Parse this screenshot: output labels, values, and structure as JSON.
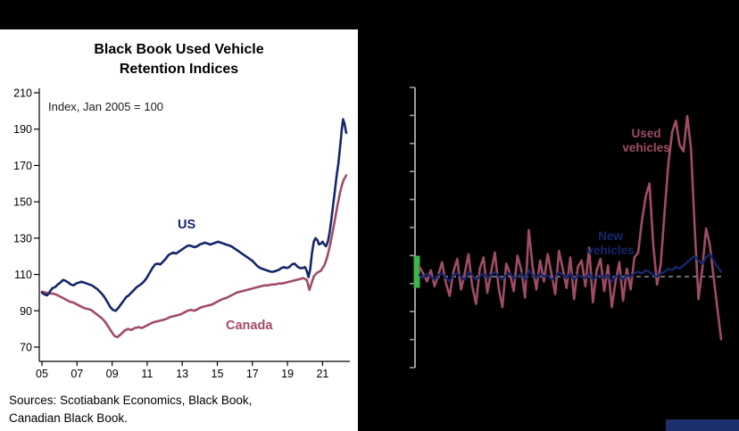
{
  "page": {
    "background_color": "#000000",
    "footer_bar_color": "#1c2e6b"
  },
  "chart_data": [
    {
      "type": "line",
      "title": "Black Book Used Vehicle Retention Indices",
      "annotation": "Index, Jan 2005 = 100",
      "xlabel": "",
      "ylabel": "",
      "ylim": [
        70,
        210
      ],
      "yticks": [
        70,
        90,
        110,
        130,
        150,
        170,
        190,
        210
      ],
      "xtick_labels": [
        "05",
        "07",
        "09",
        "11",
        "13",
        "15",
        "17",
        "19",
        "21"
      ],
      "xtick_years": [
        2005,
        2007,
        2009,
        2011,
        2013,
        2015,
        2017,
        2019,
        2021
      ],
      "grid": false,
      "legend_position": "inline-series-labels",
      "series": [
        {
          "name": "US",
          "color": "#16266c",
          "points": [
            [
              2005.0,
              100
            ],
            [
              2005.15,
              99
            ],
            [
              2005.3,
              98.5
            ],
            [
              2005.45,
              100.5
            ],
            [
              2005.6,
              102.5
            ],
            [
              2005.75,
              103
            ],
            [
              2005.9,
              104.5
            ],
            [
              2006.05,
              105.5
            ],
            [
              2006.2,
              107
            ],
            [
              2006.35,
              106.5
            ],
            [
              2006.5,
              105.5
            ],
            [
              2006.65,
              104.5
            ],
            [
              2006.8,
              104
            ],
            [
              2006.95,
              105
            ],
            [
              2007.1,
              105.5
            ],
            [
              2007.25,
              106
            ],
            [
              2007.4,
              105.5
            ],
            [
              2007.55,
              105
            ],
            [
              2007.7,
              104.5
            ],
            [
              2007.85,
              104
            ],
            [
              2008.0,
              103
            ],
            [
              2008.15,
              102
            ],
            [
              2008.3,
              100.5
            ],
            [
              2008.45,
              99
            ],
            [
              2008.6,
              97
            ],
            [
              2008.75,
              94.5
            ],
            [
              2008.9,
              92
            ],
            [
              2009.05,
              90.5
            ],
            [
              2009.2,
              90
            ],
            [
              2009.35,
              91.5
            ],
            [
              2009.5,
              93.5
            ],
            [
              2009.65,
              95.5
            ],
            [
              2009.8,
              97.5
            ],
            [
              2009.95,
              98.5
            ],
            [
              2010.1,
              100
            ],
            [
              2010.25,
              101.5
            ],
            [
              2010.4,
              103
            ],
            [
              2010.55,
              104
            ],
            [
              2010.7,
              105
            ],
            [
              2010.85,
              106.5
            ],
            [
              2011.0,
              108.5
            ],
            [
              2011.15,
              111
            ],
            [
              2011.3,
              113.5
            ],
            [
              2011.45,
              115.5
            ],
            [
              2011.6,
              116
            ],
            [
              2011.75,
              115.5
            ],
            [
              2011.9,
              117
            ],
            [
              2012.05,
              118.5
            ],
            [
              2012.2,
              120.5
            ],
            [
              2012.35,
              121.5
            ],
            [
              2012.5,
              122
            ],
            [
              2012.65,
              121.5
            ],
            [
              2012.8,
              122.5
            ],
            [
              2012.95,
              123.5
            ],
            [
              2013.1,
              124.5
            ],
            [
              2013.25,
              125.5
            ],
            [
              2013.4,
              126
            ],
            [
              2013.55,
              125.5
            ],
            [
              2013.7,
              125
            ],
            [
              2013.85,
              125.5
            ],
            [
              2014.0,
              126.5
            ],
            [
              2014.15,
              127
            ],
            [
              2014.3,
              127.5
            ],
            [
              2014.45,
              127
            ],
            [
              2014.6,
              126.5
            ],
            [
              2014.75,
              127
            ],
            [
              2014.9,
              127.5
            ],
            [
              2015.05,
              128
            ],
            [
              2015.2,
              127.5
            ],
            [
              2015.35,
              127
            ],
            [
              2015.5,
              126.5
            ],
            [
              2015.65,
              126
            ],
            [
              2015.8,
              125.5
            ],
            [
              2015.95,
              124.5
            ],
            [
              2016.1,
              123.5
            ],
            [
              2016.25,
              122.5
            ],
            [
              2016.4,
              121.5
            ],
            [
              2016.55,
              120.5
            ],
            [
              2016.7,
              119.5
            ],
            [
              2016.85,
              118.5
            ],
            [
              2017.0,
              117.5
            ],
            [
              2017.15,
              116
            ],
            [
              2017.3,
              114.5
            ],
            [
              2017.45,
              113.5
            ],
            [
              2017.6,
              113
            ],
            [
              2017.75,
              112.5
            ],
            [
              2017.9,
              112
            ],
            [
              2018.05,
              111.5
            ],
            [
              2018.2,
              111.5
            ],
            [
              2018.35,
              112
            ],
            [
              2018.5,
              112.5
            ],
            [
              2018.65,
              113.5
            ],
            [
              2018.8,
              114
            ],
            [
              2018.95,
              113.5
            ],
            [
              2019.1,
              114
            ],
            [
              2019.25,
              115.5
            ],
            [
              2019.4,
              116
            ],
            [
              2019.55,
              114.5
            ],
            [
              2019.7,
              113.5
            ],
            [
              2019.85,
              113.5
            ],
            [
              2020.0,
              114
            ],
            [
              2020.1,
              112
            ],
            [
              2020.2,
              108.5
            ],
            [
              2020.3,
              113
            ],
            [
              2020.4,
              122
            ],
            [
              2020.5,
              128
            ],
            [
              2020.6,
              130
            ],
            [
              2020.7,
              129
            ],
            [
              2020.8,
              126.5
            ],
            [
              2020.9,
              127
            ],
            [
              2021.0,
              128
            ],
            [
              2021.1,
              126.5
            ],
            [
              2021.2,
              125.5
            ],
            [
              2021.3,
              128
            ],
            [
              2021.4,
              133
            ],
            [
              2021.5,
              140
            ],
            [
              2021.6,
              148
            ],
            [
              2021.7,
              156
            ],
            [
              2021.8,
              164
            ],
            [
              2021.9,
              171
            ],
            [
              2022.0,
              180
            ],
            [
              2022.1,
              190
            ],
            [
              2022.17,
              195.5
            ],
            [
              2022.25,
              193
            ],
            [
              2022.35,
              188
            ]
          ]
        },
        {
          "name": "Canada",
          "color": "#a04c64",
          "points": [
            [
              2005.0,
              100.5
            ],
            [
              2005.2,
              100
            ],
            [
              2005.4,
              99.5
            ],
            [
              2005.6,
              99.5
            ],
            [
              2005.8,
              99
            ],
            [
              2006.0,
              98
            ],
            [
              2006.2,
              97
            ],
            [
              2006.4,
              96
            ],
            [
              2006.6,
              95
            ],
            [
              2006.8,
              94.5
            ],
            [
              2007.0,
              93.5
            ],
            [
              2007.2,
              92.5
            ],
            [
              2007.4,
              91.5
            ],
            [
              2007.6,
              91
            ],
            [
              2007.8,
              90.5
            ],
            [
              2008.0,
              89
            ],
            [
              2008.2,
              87.5
            ],
            [
              2008.4,
              86
            ],
            [
              2008.6,
              84
            ],
            [
              2008.8,
              81
            ],
            [
              2009.0,
              78
            ],
            [
              2009.15,
              76
            ],
            [
              2009.3,
              75.5
            ],
            [
              2009.5,
              77
            ],
            [
              2009.7,
              79
            ],
            [
              2009.9,
              80
            ],
            [
              2010.1,
              79.5
            ],
            [
              2010.3,
              80.5
            ],
            [
              2010.5,
              81
            ],
            [
              2010.7,
              80.5
            ],
            [
              2010.9,
              81.5
            ],
            [
              2011.1,
              82.5
            ],
            [
              2011.3,
              83.5
            ],
            [
              2011.5,
              84
            ],
            [
              2011.7,
              84.5
            ],
            [
              2011.9,
              85
            ],
            [
              2012.1,
              85.5
            ],
            [
              2012.3,
              86.5
            ],
            [
              2012.5,
              87
            ],
            [
              2012.7,
              87.5
            ],
            [
              2012.9,
              88
            ],
            [
              2013.1,
              89
            ],
            [
              2013.3,
              90
            ],
            [
              2013.5,
              90.5
            ],
            [
              2013.7,
              90
            ],
            [
              2013.9,
              91
            ],
            [
              2014.1,
              92
            ],
            [
              2014.3,
              92.5
            ],
            [
              2014.5,
              93
            ],
            [
              2014.7,
              93.5
            ],
            [
              2014.9,
              94.5
            ],
            [
              2015.1,
              95.5
            ],
            [
              2015.3,
              96.5
            ],
            [
              2015.5,
              97
            ],
            [
              2015.7,
              98
            ],
            [
              2015.9,
              99
            ],
            [
              2016.1,
              100
            ],
            [
              2016.3,
              100.5
            ],
            [
              2016.5,
              101
            ],
            [
              2016.7,
              101.5
            ],
            [
              2016.9,
              102
            ],
            [
              2017.1,
              102.5
            ],
            [
              2017.3,
              103
            ],
            [
              2017.5,
              103.5
            ],
            [
              2017.7,
              104
            ],
            [
              2017.9,
              104
            ],
            [
              2018.1,
              104.5
            ],
            [
              2018.3,
              104.5
            ],
            [
              2018.5,
              105
            ],
            [
              2018.7,
              105
            ],
            [
              2018.9,
              105.5
            ],
            [
              2019.1,
              106
            ],
            [
              2019.3,
              106.5
            ],
            [
              2019.5,
              107
            ],
            [
              2019.7,
              107.5
            ],
            [
              2019.9,
              108
            ],
            [
              2020.1,
              107
            ],
            [
              2020.25,
              101.5
            ],
            [
              2020.4,
              106
            ],
            [
              2020.5,
              109
            ],
            [
              2020.7,
              111
            ],
            [
              2020.9,
              112
            ],
            [
              2021.0,
              113.5
            ],
            [
              2021.1,
              115
            ],
            [
              2021.25,
              119
            ],
            [
              2021.4,
              125
            ],
            [
              2021.55,
              132
            ],
            [
              2021.7,
              140
            ],
            [
              2021.85,
              148
            ],
            [
              2022.0,
              155
            ],
            [
              2022.1,
              159
            ],
            [
              2022.2,
              162
            ],
            [
              2022.35,
              164.5
            ]
          ]
        }
      ],
      "source_lines": [
        "Sources: Scotiabank Economics, Black Book,",
        "Canadian Black Book."
      ]
    },
    {
      "type": "line",
      "title": "",
      "baseline": 0,
      "baseline_style": "dashed",
      "ylim": [
        -5.5,
        11
      ],
      "grid": false,
      "axis_color": "#9b9b9b",
      "legend_position": "inline-series-labels",
      "start_bar": {
        "color": "#3cb54a",
        "from": -0.7,
        "to": 1.3
      },
      "series": [
        {
          "name": "Used vehicles",
          "color": "#a04c64",
          "values": [
            0.6,
            0.2,
            -0.3,
            0.4,
            -0.6,
            0.1,
            0.9,
            -0.4,
            -1.2,
            0.3,
            1.1,
            -0.8,
            0.2,
            1.4,
            -0.6,
            -1.7,
            0.5,
            1.2,
            -1.0,
            0.3,
            1.5,
            -0.7,
            -1.9,
            0.8,
            0.2,
            -0.9,
            1.3,
            0.4,
            -1.3,
            2.9,
            0.6,
            -0.8,
            1.0,
            -0.3,
            1.4,
            0.2,
            -1.1,
            1.6,
            0.5,
            -0.7,
            1.2,
            -1.4,
            0.6,
            1.0,
            -0.6,
            1.8,
            -1.6,
            0.4,
            1.1,
            -0.9,
            0.7,
            -1.9,
            -0.3,
            0.9,
            -1.5,
            0.5,
            -0.8,
            1.2,
            1.5,
            3.5,
            5.0,
            5.8,
            2.0,
            -0.5,
            0.8,
            4.0,
            7.0,
            9.0,
            9.7,
            8.2,
            7.8,
            10.0,
            8.0,
            3.0,
            -1.4,
            0.5,
            3.0,
            2.0,
            0.0,
            -2.0,
            -3.9
          ]
        },
        {
          "name": "New vehicles",
          "color": "#16266c",
          "values": [
            0.1,
            -0.1,
            0.2,
            0.0,
            -0.2,
            0.1,
            0.2,
            -0.1,
            -0.3,
            0.1,
            0.2,
            0.0,
            -0.2,
            0.3,
            0.1,
            -0.2,
            0.0,
            0.2,
            -0.1,
            0.1,
            0.3,
            0.0,
            -0.2,
            0.1,
            0.2,
            -0.1,
            0.0,
            0.2,
            -0.2,
            0.4,
            0.1,
            -0.1,
            0.2,
            0.0,
            0.1,
            -0.2,
            0.0,
            0.3,
            0.1,
            -0.1,
            0.2,
            -0.2,
            0.1,
            0.0,
            -0.1,
            0.2,
            -0.2,
            0.0,
            0.1,
            -0.1,
            0.1,
            -0.3,
            0.0,
            0.1,
            -0.2,
            0.1,
            0.0,
            0.2,
            0.3,
            0.2,
            0.4,
            0.3,
            0.1,
            0.0,
            0.2,
            0.3,
            0.5,
            0.4,
            0.6,
            0.5,
            0.7,
            0.9,
            1.1,
            1.3,
            1.0,
            0.8,
            1.2,
            1.4,
            1.0,
            0.6,
            0.3
          ]
        }
      ]
    }
  ]
}
